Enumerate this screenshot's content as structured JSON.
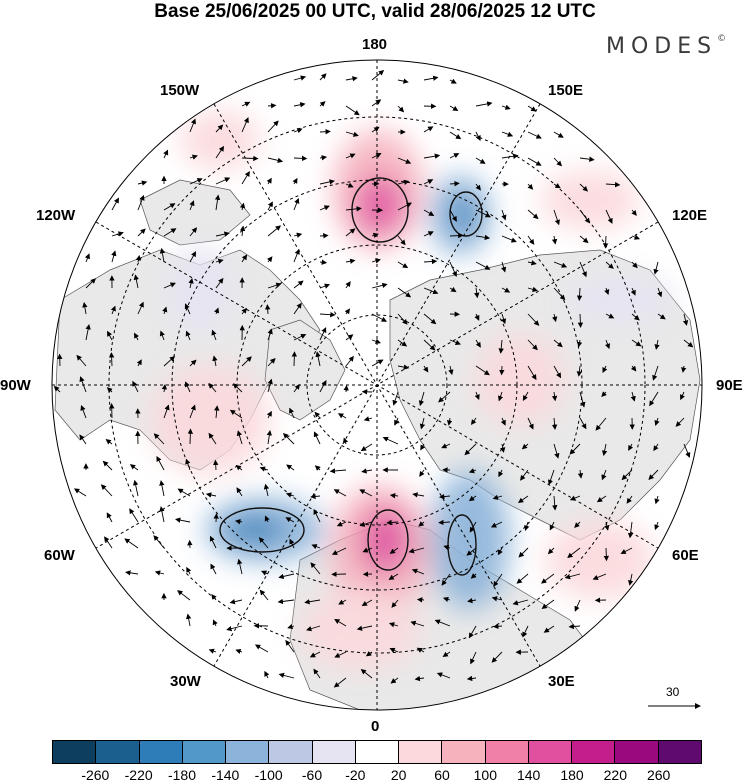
{
  "title": "Base 25/06/2025 00 UTC, valid 28/06/2025 12 UTC",
  "logo": {
    "text": "MODES",
    "mark": "©"
  },
  "longitude_labels": [
    {
      "key": "180",
      "text": "180"
    },
    {
      "key": "150E",
      "text": "150E"
    },
    {
      "key": "120E",
      "text": "120E"
    },
    {
      "key": "90E",
      "text": "90E"
    },
    {
      "key": "60E",
      "text": "60E"
    },
    {
      "key": "30E",
      "text": "30E"
    },
    {
      "key": "0",
      "text": "0"
    },
    {
      "key": "30W",
      "text": "30W"
    },
    {
      "key": "60W",
      "text": "60W"
    },
    {
      "key": "90W",
      "text": "90W"
    },
    {
      "key": "120W",
      "text": "120W"
    },
    {
      "key": "150W",
      "text": "150W"
    }
  ],
  "reference_vector": {
    "value": "30",
    "icon": "arrow-right-icon"
  },
  "colorbar": {
    "colors": [
      "#0e3e5f",
      "#1b5f8e",
      "#2e7db8",
      "#5298c8",
      "#8cb3d9",
      "#bcc8e4",
      "#e6e4f2",
      "#ffffff",
      "#fbd9dc",
      "#f6b2bd",
      "#f080a8",
      "#e0509f",
      "#c41d8c",
      "#9a0a7e",
      "#5e0a6e"
    ],
    "ticks": [
      "-260",
      "-220",
      "-180",
      "-140",
      "-100",
      "-60",
      "-20",
      "20",
      "60",
      "100",
      "140",
      "180",
      "220",
      "260"
    ]
  },
  "map": {
    "projection": "north-polar-stereographic",
    "features": [
      "coastlines",
      "latitude-circles",
      "meridians",
      "wind-vectors",
      "shaded-anomaly",
      "contours"
    ]
  }
}
